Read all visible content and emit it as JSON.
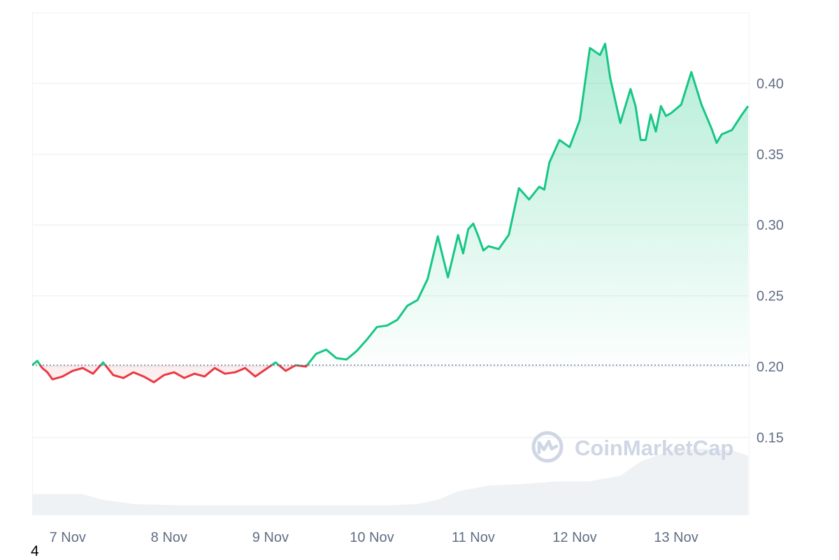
{
  "chart_data": {
    "type": "area",
    "xlabel": "",
    "ylabel": "",
    "x_ticks": [
      "7 Nov",
      "8 Nov",
      "9 Nov",
      "10 Nov",
      "11 Nov",
      "12 Nov",
      "13 Nov"
    ],
    "y_ticks": [
      "0.15",
      "0.20",
      "0.25",
      "0.30",
      "0.35",
      "0.40"
    ],
    "ylim": [
      0.095,
      0.45
    ],
    "xlim": [
      0,
      7.06
    ],
    "baseline": 0.201,
    "grid": true,
    "legend": "none",
    "colors": {
      "up": "#16c784",
      "down": "#ea3943",
      "grid": "#eff2f5",
      "volume": "#eff2f5"
    },
    "series": [
      {
        "x": [
          0,
          0.05,
          0.1,
          0.15,
          0.2,
          0.3,
          0.4,
          0.5,
          0.6,
          0.7,
          0.8,
          0.9,
          1.0,
          1.1,
          1.2,
          1.3,
          1.4,
          1.5,
          1.6,
          1.7,
          1.8,
          1.9,
          2.0,
          2.1,
          2.2,
          2.3,
          2.4,
          2.5,
          2.6,
          2.7,
          2.8,
          2.9,
          3.0,
          3.1,
          3.2,
          3.3,
          3.4,
          3.5,
          3.6,
          3.7,
          3.8,
          3.9,
          4.0,
          4.1,
          4.2,
          4.25,
          4.3,
          4.35,
          4.4,
          4.45,
          4.5,
          4.6,
          4.7,
          4.8,
          4.9,
          5.0,
          5.05,
          5.1,
          5.2,
          5.3,
          5.4,
          5.5,
          5.6,
          5.65,
          5.7,
          5.8,
          5.9,
          5.95,
          6.0,
          6.05,
          6.1,
          6.15,
          6.2,
          6.25,
          6.3,
          6.4,
          6.5,
          6.6,
          6.7,
          6.75,
          6.8,
          6.9,
          7.0,
          7.06
        ],
        "y": [
          0.201,
          0.204,
          0.199,
          0.196,
          0.191,
          0.193,
          0.197,
          0.199,
          0.195,
          0.203,
          0.194,
          0.192,
          0.196,
          0.193,
          0.189,
          0.194,
          0.196,
          0.192,
          0.195,
          0.193,
          0.199,
          0.195,
          0.196,
          0.199,
          0.193,
          0.198,
          0.203,
          0.197,
          0.201,
          0.2,
          0.209,
          0.212,
          0.206,
          0.205,
          0.211,
          0.219,
          0.228,
          0.229,
          0.233,
          0.243,
          0.247,
          0.262,
          0.292,
          0.263,
          0.293,
          0.28,
          0.297,
          0.301,
          0.292,
          0.282,
          0.285,
          0.283,
          0.293,
          0.326,
          0.318,
          0.327,
          0.325,
          0.344,
          0.36,
          0.355,
          0.374,
          0.425,
          0.42,
          0.428,
          0.404,
          0.372,
          0.396,
          0.384,
          0.36,
          0.36,
          0.378,
          0.366,
          0.384,
          0.377,
          0.379,
          0.385,
          0.408,
          0.385,
          0.368,
          0.358,
          0.364,
          0.367,
          0.378,
          0.384
        ]
      },
      {
        "name": "volume",
        "x": [
          0,
          0.5,
          0.7,
          1.0,
          1.5,
          2.0,
          2.5,
          3.0,
          3.5,
          3.8,
          4.0,
          4.2,
          4.5,
          4.8,
          5.0,
          5.2,
          5.5,
          5.8,
          6.0,
          6.3,
          6.6,
          6.9,
          7.06
        ],
        "y": [
          0.11,
          0.11,
          0.106,
          0.103,
          0.102,
          0.102,
          0.102,
          0.102,
          0.102,
          0.103,
          0.106,
          0.112,
          0.116,
          0.117,
          0.118,
          0.119,
          0.119,
          0.123,
          0.133,
          0.141,
          0.142,
          0.141,
          0.137
        ]
      }
    ]
  },
  "watermark": {
    "text": "CoinMarketCap"
  },
  "footnote": "4"
}
